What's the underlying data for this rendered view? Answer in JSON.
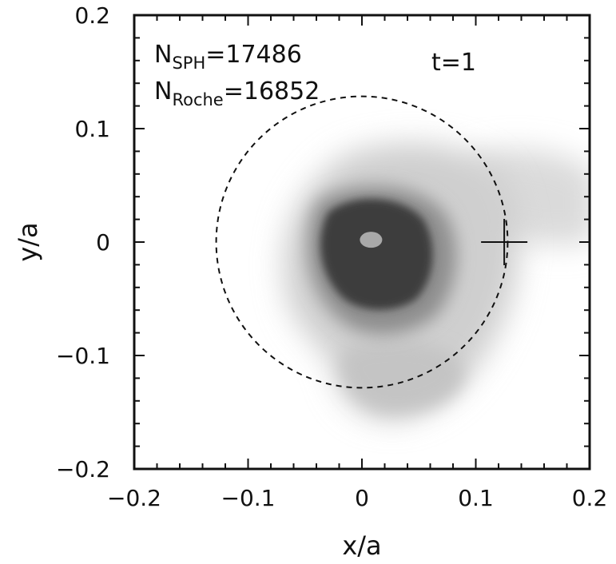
{
  "chart_data": {
    "type": "scatter",
    "title": "",
    "xlabel": "x/a",
    "ylabel": "y/a",
    "xlim": [
      -0.2,
      0.2
    ],
    "ylim": [
      -0.2,
      0.2
    ],
    "x_ticks": [
      -0.2,
      -0.1,
      0,
      0.1,
      0.2
    ],
    "y_ticks": [
      -0.2,
      -0.1,
      0,
      0.1,
      0.2
    ],
    "x_tick_labels": [
      "−0.2",
      "−0.1",
      "0",
      "0.1",
      "0.2"
    ],
    "y_tick_labels": [
      "−0.2",
      "−0.1",
      "0",
      "0.1",
      "0.2"
    ],
    "grid": false,
    "annotations": {
      "n_sph_base": "N",
      "n_sph_sub": "SPH",
      "n_sph_value": "=17486",
      "n_roche_base": "N",
      "n_roche_sub": "Roche",
      "n_roche_value": "=16852",
      "time": "t=1"
    },
    "roche_circle": {
      "style": "dashed",
      "center": [
        0.0,
        0.0
      ],
      "radius": 0.128
    },
    "marker": {
      "shape": "cross",
      "x": 0.125,
      "y": 0.0
    },
    "density_map": {
      "colormap": "grayscale",
      "outer_envelope_color": "#d6d6d6",
      "inner_core_color": "#3a3a3a",
      "center_blob": {
        "x": 0.008,
        "y": 0.002,
        "color": "#a9a9a9"
      }
    }
  }
}
